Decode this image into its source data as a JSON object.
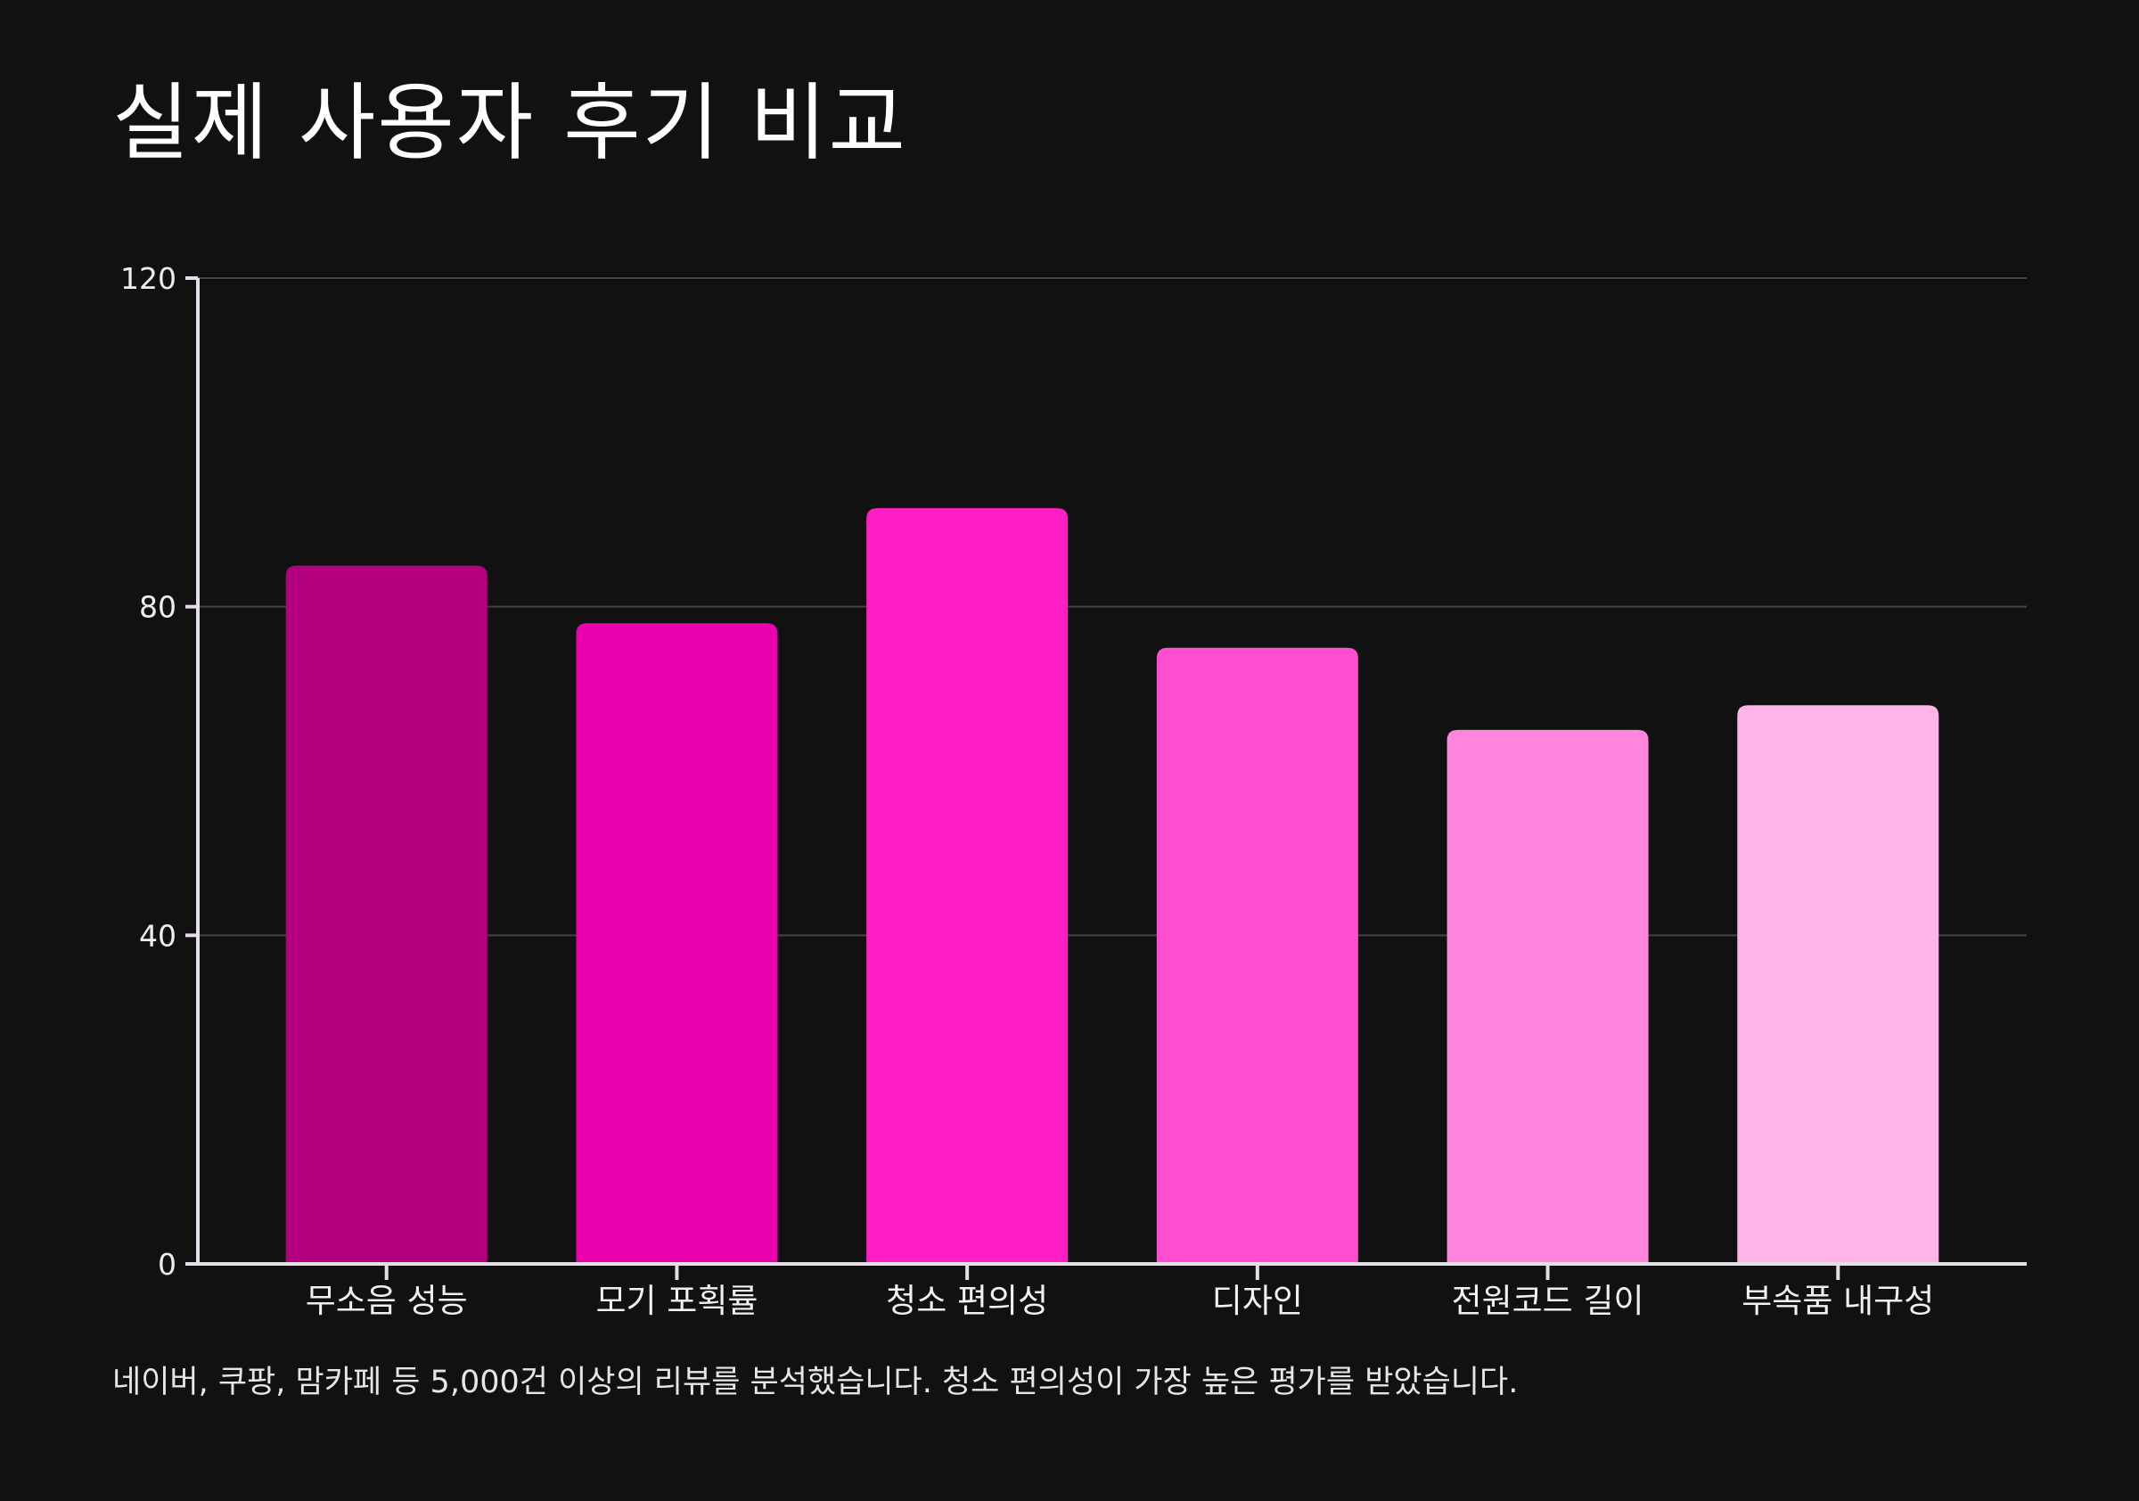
{
  "title": "실제 사용자 후기 비교",
  "caption": "네이버, 쿠팡, 맘카페 등 5,000건 이상의 리뷰를 분석했습니다. 청소 편의성이 가장 높은 평가를 받았습니다.",
  "colors": {
    "background": "#111111",
    "gridline": "#444444",
    "axis": "#e5dde8",
    "bars": [
      "#b4007f",
      "#ea00ac",
      "#ff1ec4",
      "#ff4fd0",
      "#ff86dc",
      "#ffb3e8"
    ]
  },
  "chart_data": {
    "type": "bar",
    "categories": [
      "무소음 성능",
      "모기 포획률",
      "청소 편의성",
      "디자인",
      "전원코드 길이",
      "부속품 내구성"
    ],
    "values": [
      85,
      78,
      92,
      75,
      65,
      68
    ],
    "ylim": [
      0,
      120
    ],
    "yticks": [
      "0",
      "40",
      "80",
      "120"
    ],
    "grid": true,
    "legend": "none"
  }
}
